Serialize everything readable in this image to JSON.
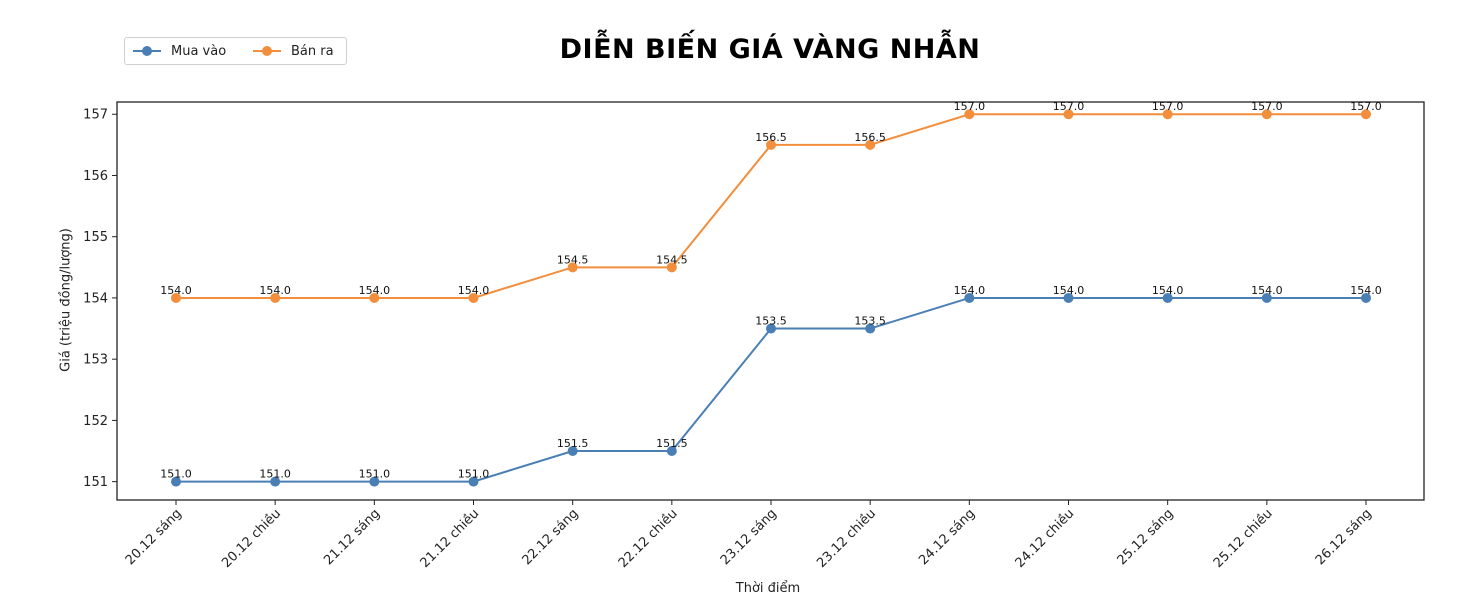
{
  "chart_data": {
    "type": "line",
    "title": "DIỄN BIẾN GIÁ VÀNG NHẪN",
    "xlabel": "Thời điểm",
    "ylabel": "Giá (triệu đồng/lượng)",
    "ylim": [
      150.7,
      157.2
    ],
    "yticks": [
      151,
      152,
      153,
      154,
      155,
      156,
      157
    ],
    "categories": [
      "20.12 sáng",
      "20.12 chiều",
      "21.12 sáng",
      "21.12 chiều",
      "22.12 sáng",
      "22.12 chiều",
      "23.12 sáng",
      "23.12 chiều",
      "24.12 sáng",
      "24.12 chiều",
      "25.12 sáng",
      "25.12 chiều",
      "26.12 sáng"
    ],
    "series": [
      {
        "name": "Mua vào",
        "color": "#4a7fb5",
        "values": [
          151.0,
          151.0,
          151.0,
          151.0,
          151.5,
          151.5,
          153.5,
          153.5,
          154.0,
          154.0,
          154.0,
          154.0,
          154.0
        ]
      },
      {
        "name": "Bán ra",
        "color": "#f28e3c",
        "values": [
          154.0,
          154.0,
          154.0,
          154.0,
          154.5,
          154.5,
          156.5,
          156.5,
          157.0,
          157.0,
          157.0,
          157.0,
          157.0
        ]
      }
    ],
    "legend_position": "top-left",
    "grid": false
  }
}
